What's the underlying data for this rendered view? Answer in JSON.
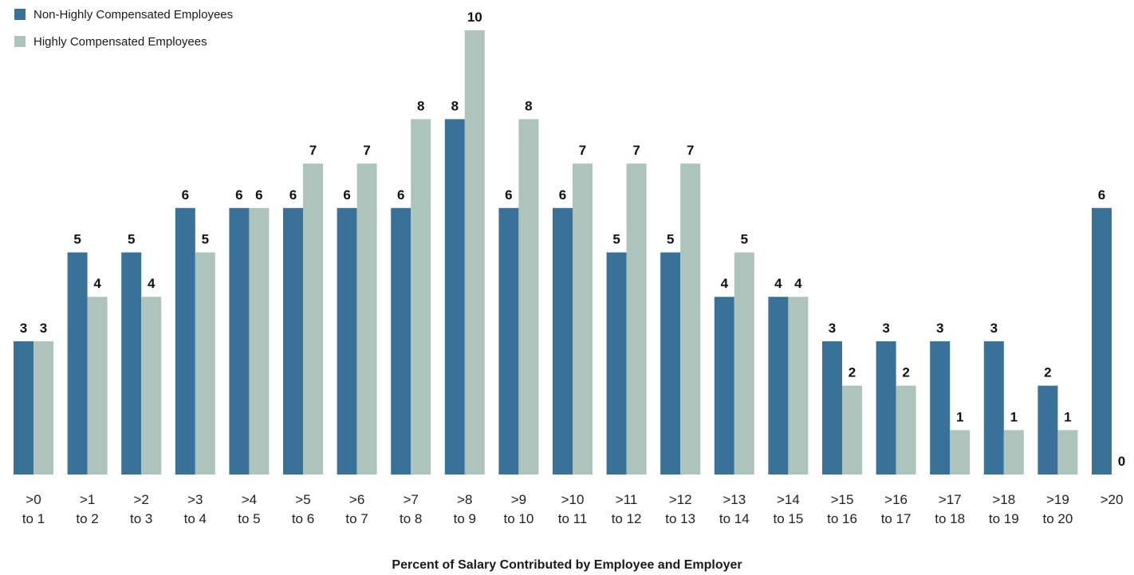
{
  "chart_data": {
    "type": "bar",
    "title": "",
    "xlabel": "Percent of Salary Contributed by Employee and Employer",
    "ylabel": "",
    "ylim": [
      0,
      10
    ],
    "grid": false,
    "legend_position": "top-left",
    "categories": [
      [
        ">0",
        "to 1"
      ],
      [
        ">1",
        "to 2"
      ],
      [
        ">2",
        "to 3"
      ],
      [
        ">3",
        "to 4"
      ],
      [
        ">4",
        "to 5"
      ],
      [
        ">5",
        "to 6"
      ],
      [
        ">6",
        "to 7"
      ],
      [
        ">7",
        "to 8"
      ],
      [
        ">8",
        "to 9"
      ],
      [
        ">9",
        "to 10"
      ],
      [
        ">10",
        "to 11"
      ],
      [
        ">11",
        "to 12"
      ],
      [
        ">12",
        "to 13"
      ],
      [
        ">13",
        "to 14"
      ],
      [
        ">14",
        "to 15"
      ],
      [
        ">15",
        "to 16"
      ],
      [
        ">16",
        "to 17"
      ],
      [
        ">17",
        "to 18"
      ],
      [
        ">18",
        "to 19"
      ],
      [
        ">19",
        "to 20"
      ],
      [
        ">20"
      ]
    ],
    "series": [
      {
        "name": "Non-Highly Compensated Employees",
        "color": "#3a7198",
        "values": [
          3,
          5,
          5,
          6,
          6,
          6,
          6,
          6,
          8,
          6,
          6,
          5,
          5,
          4,
          4,
          3,
          3,
          3,
          3,
          2,
          6
        ]
      },
      {
        "name": "Highly Compensated Employees",
        "color": "#adc4bc",
        "values": [
          3,
          4,
          4,
          5,
          6,
          7,
          7,
          8,
          10,
          8,
          7,
          7,
          7,
          5,
          4,
          2,
          2,
          1,
          1,
          1,
          0
        ]
      }
    ]
  }
}
